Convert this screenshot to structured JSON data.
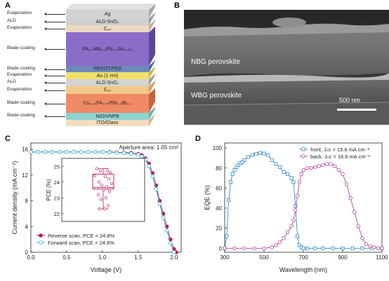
{
  "panel_letters": {
    "a": "A",
    "b": "B",
    "c": "C",
    "d": "D"
  },
  "panelA": {
    "layers": [
      {
        "label": "Ag",
        "process": "Evaporation",
        "color": "#d3d3d3",
        "side": "#a8a8a8"
      },
      {
        "label": "ALD-SnO₂",
        "process": "ALD",
        "color": "#cfcfcf",
        "side": "#9e9e9e"
      },
      {
        "label": "C₆₀",
        "process": "Evaporation",
        "color": "#eed9c2",
        "side": "#c9ae8f"
      },
      {
        "label": "FA₀.₇MA₀.₃Pb₀.₅Sn₀.₅I₃",
        "process": "Blade coating",
        "color": "#8a6cc9",
        "side": "#5f4596"
      },
      {
        "label": "PEDOT:PSS",
        "process": "Blade coating",
        "color": "#7089bd",
        "side": "#4f6796"
      },
      {
        "label": "Au (1 nm)",
        "process": "Evaporation",
        "color": "#efe06a",
        "side": "#c9b944"
      },
      {
        "label": "ALD-SnO₂",
        "process": "ALD",
        "color": "#d3d3d3",
        "side": "#a2a2a2"
      },
      {
        "label": "C₆₀",
        "process": "Evaporation",
        "color": "#f2c989",
        "side": "#d4a45d"
      },
      {
        "label": "Cs₀.₂₅FA₀.₇₅PbI₁.₈Br₁.₂",
        "process": "Blade coating",
        "color": "#f08a64",
        "side": "#c9633f"
      },
      {
        "label": "NiO/VNPB",
        "process": "Blade coating",
        "color": "#8fd3d2",
        "side": "#5fb0ae"
      },
      {
        "label": "ITO/Glass",
        "process": "",
        "color": "#f2ddbe",
        "side": "#cfb591"
      }
    ]
  },
  "panelB": {
    "nbg_label": "NBG perovskite",
    "wbg_label": "WBG perovskite",
    "scalebar_label": "500 nm"
  },
  "chart_data": [
    {
      "type": "line",
      "panel": "C",
      "xlabel": "Voltage (V)",
      "ylabel": "Current density (mA cm⁻²)",
      "xlim": [
        0.0,
        2.1
      ],
      "ylim": [
        0,
        17
      ],
      "xticks": [
        "0.0",
        "0.5",
        "1.0",
        "1.5",
        "2.0"
      ],
      "yticks": [
        "0",
        "4",
        "8",
        "12",
        "16"
      ],
      "annotation": "Aperture area: 1.05 cm²",
      "legend_position": "bottom-left",
      "series": [
        {
          "name": "Reverse scan, PCE = 24.8%",
          "color": "#c2185b",
          "marker": "filled-circle",
          "x": [
            0.0,
            0.1,
            0.2,
            0.3,
            0.4,
            0.5,
            0.6,
            0.7,
            0.8,
            0.9,
            1.0,
            1.1,
            1.2,
            1.3,
            1.4,
            1.5,
            1.55,
            1.6,
            1.65,
            1.7,
            1.75,
            1.8,
            1.85,
            1.9,
            1.95,
            2.0,
            2.03
          ],
          "y": [
            15.6,
            15.6,
            15.6,
            15.6,
            15.6,
            15.6,
            15.6,
            15.6,
            15.6,
            15.6,
            15.6,
            15.6,
            15.55,
            15.5,
            15.45,
            15.3,
            15.1,
            14.6,
            13.8,
            12.3,
            10.4,
            8.0,
            6.0,
            4.0,
            2.0,
            0.5,
            0.0
          ]
        },
        {
          "name": "Forward scan, PCE = 24.6%",
          "color": "#29b6d6",
          "marker": "open-circle",
          "x": [
            0.0,
            0.1,
            0.2,
            0.3,
            0.4,
            0.5,
            0.6,
            0.7,
            0.8,
            0.9,
            1.0,
            1.1,
            1.2,
            1.3,
            1.4,
            1.5,
            1.55,
            1.6,
            1.65,
            1.7,
            1.75,
            1.8,
            1.85,
            1.9,
            1.95,
            2.0
          ],
          "y": [
            15.6,
            15.6,
            15.6,
            15.6,
            15.6,
            15.6,
            15.6,
            15.6,
            15.6,
            15.6,
            15.6,
            15.55,
            15.5,
            15.45,
            15.35,
            15.2,
            14.9,
            14.4,
            13.4,
            11.8,
            9.8,
            7.5,
            5.4,
            3.4,
            1.4,
            0.0
          ]
        }
      ],
      "inset": {
        "type": "box",
        "ylabel": "PCE (%)",
        "ylim": [
          21.5,
          25.5
        ],
        "yticks": [
          "22",
          "23",
          "24",
          "25"
        ],
        "box": {
          "min": 22.3,
          "q1": 23.55,
          "median": 23.65,
          "q3": 24.5,
          "max": 24.85
        },
        "points": [
          24.85,
          24.7,
          24.7,
          24.6,
          24.4,
          24.35,
          24.2,
          24.0,
          23.9,
          23.8,
          23.7,
          23.6,
          23.5,
          23.4,
          23.2,
          23.0,
          22.9,
          22.5,
          22.3,
          22.3
        ]
      }
    },
    {
      "type": "line",
      "panel": "D",
      "xlabel": "Wavelength (nm)",
      "ylabel": "EQE (%)",
      "xlim": [
        300,
        1100
      ],
      "ylim": [
        -4,
        105
      ],
      "xticks": [
        "300",
        "500",
        "700",
        "900",
        "1100"
      ],
      "yticks": [
        "0",
        "20",
        "40",
        "60",
        "80",
        "100"
      ],
      "legend_position": "top-right",
      "series": [
        {
          "name": "front, Jₛᴄ = 15.6 mA cm⁻²",
          "color": "#2e8bc9",
          "marker": "open-square",
          "x": [
            300,
            310,
            320,
            330,
            340,
            350,
            360,
            370,
            380,
            390,
            400,
            420,
            440,
            460,
            480,
            500,
            520,
            540,
            560,
            580,
            600,
            620,
            640,
            650,
            660,
            670,
            680,
            690,
            700,
            720,
            760,
            800,
            850,
            900,
            950,
            1000,
            1050,
            1100
          ],
          "x_note": "",
          "y": [
            0,
            12,
            48,
            66,
            74,
            78,
            81,
            83,
            85,
            86,
            88,
            91,
            93,
            94,
            95,
            94.5,
            93,
            88,
            84,
            81,
            76,
            74,
            70,
            66,
            42,
            12,
            3,
            1,
            0,
            0,
            0,
            0,
            0,
            0,
            0,
            0,
            0,
            0
          ]
        },
        {
          "name": "back, Jₛᴄ = 16.6 mA cm⁻²",
          "color": "#b0479a",
          "marker": "open-circle",
          "x": [
            300,
            350,
            400,
            450,
            500,
            540,
            560,
            580,
            600,
            620,
            640,
            650,
            660,
            670,
            680,
            690,
            700,
            720,
            740,
            760,
            780,
            800,
            820,
            840,
            860,
            880,
            900,
            920,
            940,
            960,
            980,
            1000,
            1020,
            1040,
            1060,
            1080,
            1100
          ],
          "y": [
            0,
            0,
            0,
            0,
            0,
            1,
            3,
            6,
            10,
            16,
            22,
            28,
            38,
            52,
            66,
            74,
            78,
            80,
            80,
            81,
            82,
            83,
            84,
            84,
            82,
            78,
            74,
            64,
            50,
            36,
            22,
            10,
            4,
            2,
            1,
            0,
            0
          ]
        }
      ]
    }
  ]
}
